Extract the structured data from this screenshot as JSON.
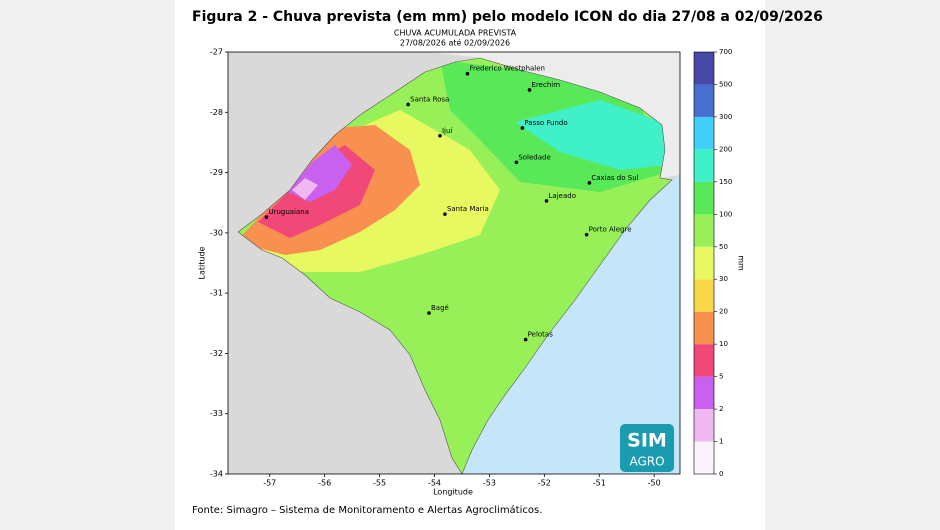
{
  "figure": {
    "title": "Figura 2 - Chuva prevista (em mm) pelo modelo ICON do dia 27/08 a 02/09/2026",
    "subtitle": [
      "CHUVA ACUMULADA PREVISTA",
      "27/08/2026 até 02/09/2026"
    ],
    "source": "Fonte: Simagro – Sistema de Monitoramento e Alertas Agroclimáticos."
  },
  "map": {
    "xlabel": "Longitude",
    "ylabel": "Latitude",
    "xlim": [
      -57.76,
      -49.53
    ],
    "ylim": [
      -34,
      -27
    ],
    "xticks": [
      -57,
      -56,
      -55,
      -54,
      -53,
      -52,
      -51,
      -50
    ],
    "yticks": [
      -34,
      -33,
      -32,
      -31,
      -30,
      -29,
      -28,
      -27
    ],
    "cities": [
      {
        "name": "Frederico Westphalen",
        "lon": -53.4,
        "lat": -27.36
      },
      {
        "name": "Erechim",
        "lon": -52.27,
        "lat": -27.63
      },
      {
        "name": "Santa Rosa",
        "lon": -54.48,
        "lat": -27.87
      },
      {
        "name": "Ijuí",
        "lon": -53.9,
        "lat": -28.39
      },
      {
        "name": "Passo Fundo",
        "lon": -52.4,
        "lat": -28.26
      },
      {
        "name": "Soledade",
        "lon": -52.51,
        "lat": -28.83
      },
      {
        "name": "Caxias do Sul",
        "lon": -51.18,
        "lat": -29.17
      },
      {
        "name": "Lajeado",
        "lon": -51.96,
        "lat": -29.47
      },
      {
        "name": "Santa Maria",
        "lon": -53.81,
        "lat": -29.69
      },
      {
        "name": "Uruguaiana",
        "lon": -57.06,
        "lat": -29.74
      },
      {
        "name": "Porto Alegre",
        "lon": -51.23,
        "lat": -30.03
      },
      {
        "name": "Bagé",
        "lon": -54.1,
        "lat": -31.33
      },
      {
        "name": "Pelotas",
        "lon": -52.34,
        "lat": -31.77
      }
    ],
    "colorbar": {
      "label": "mm",
      "levels": [
        0,
        1,
        2,
        5,
        10,
        20,
        30,
        50,
        100,
        150,
        200,
        300,
        500,
        700
      ],
      "colors": [
        "#fcf4fc",
        "#f0b8f0",
        "#c860f0",
        "#f04878",
        "#f89050",
        "#f8d848",
        "#e8f860",
        "#98f058",
        "#58e858",
        "#40f0c8",
        "#40d0f8",
        "#4870d0",
        "#4848a8"
      ]
    },
    "logo": [
      "SIM",
      "AGRO"
    ]
  }
}
